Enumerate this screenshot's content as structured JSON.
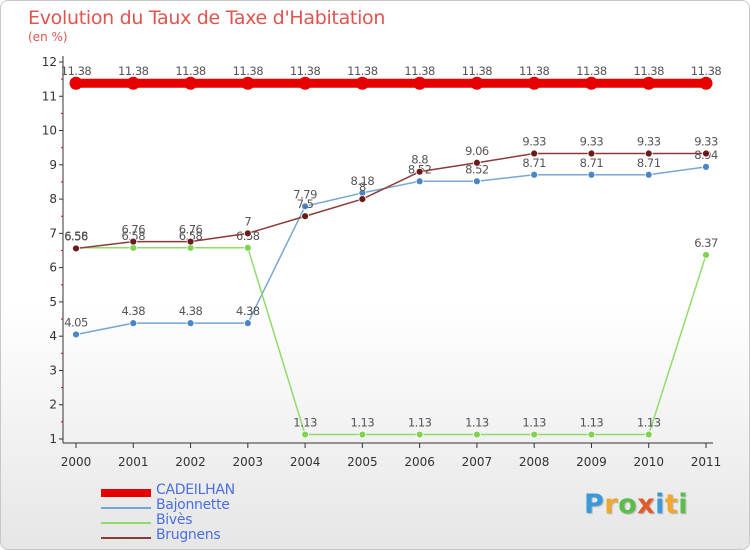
{
  "chart_data": {
    "type": "line",
    "title": "Evolution du Taux de Taxe d'Habitation",
    "subtitle": "(en %)",
    "x": [
      "2000",
      "2001",
      "2002",
      "2003",
      "2004",
      "2005",
      "2006",
      "2007",
      "2008",
      "2009",
      "2010",
      "2011"
    ],
    "ylim": [
      1,
      12
    ],
    "yticks": [
      "1",
      "2",
      "3",
      "4",
      "5",
      "6",
      "7",
      "8",
      "9",
      "10",
      "11",
      "12"
    ],
    "grid": false,
    "legend_position": "bottom-left",
    "series": [
      {
        "name": "CADEILHAN",
        "color": "#e60000",
        "thick": true,
        "values": [
          11.38,
          11.38,
          11.38,
          11.38,
          11.38,
          11.38,
          11.38,
          11.38,
          11.38,
          11.38,
          11.38,
          11.38
        ],
        "labels": [
          "11.38",
          "11.38",
          "11.38",
          "11.38",
          "11.38",
          "11.38",
          "11.38",
          "11.38",
          "11.38",
          "11.38",
          "11.38",
          "11.38"
        ]
      },
      {
        "name": "Bajonnette",
        "color": "#78a6d4",
        "marker": "#4a86c6",
        "values": [
          4.05,
          4.38,
          4.38,
          4.38,
          7.79,
          8.18,
          8.52,
          8.52,
          8.71,
          8.71,
          8.71,
          8.94
        ],
        "labels": [
          "4.05",
          "4.38",
          "4.38",
          "4.38",
          "7.79",
          "8.18",
          "8.52",
          "8.52",
          "8.71",
          "8.71",
          "8.71",
          "8.94"
        ]
      },
      {
        "name": "Bivès",
        "color": "#90dc6a",
        "marker": "#7fd34e",
        "values": [
          6.58,
          6.58,
          6.58,
          6.58,
          1.13,
          1.13,
          1.13,
          1.13,
          1.13,
          1.13,
          1.13,
          6.37
        ],
        "labels": [
          "6.58",
          "6.58",
          "6.58",
          "6.58",
          "1.13",
          "1.13",
          "1.13",
          "1.13",
          "1.13",
          "1.13",
          "1.13",
          "6.37"
        ]
      },
      {
        "name": "Brugnens",
        "color": "#8b3a3a",
        "marker": "#6b1a1a",
        "values": [
          6.56,
          6.76,
          6.76,
          7,
          7.5,
          8,
          8.8,
          9.06,
          9.33,
          9.33,
          9.33,
          9.33
        ],
        "labels": [
          "6.56",
          "6.76",
          "6.76",
          "7",
          "7.5",
          "8",
          "8.8",
          "9.06",
          "9.33",
          "9.33",
          "9.33",
          "9.33"
        ]
      }
    ]
  },
  "logo": {
    "letters": [
      "P",
      "r",
      "o",
      "x",
      "i",
      "t",
      "i"
    ],
    "colors": [
      "#3a9ad9",
      "#f2a72e",
      "#5bbd4a",
      "#e05a2a",
      "#3a9ad9",
      "#f2a72e",
      "#5bbd4a"
    ]
  }
}
